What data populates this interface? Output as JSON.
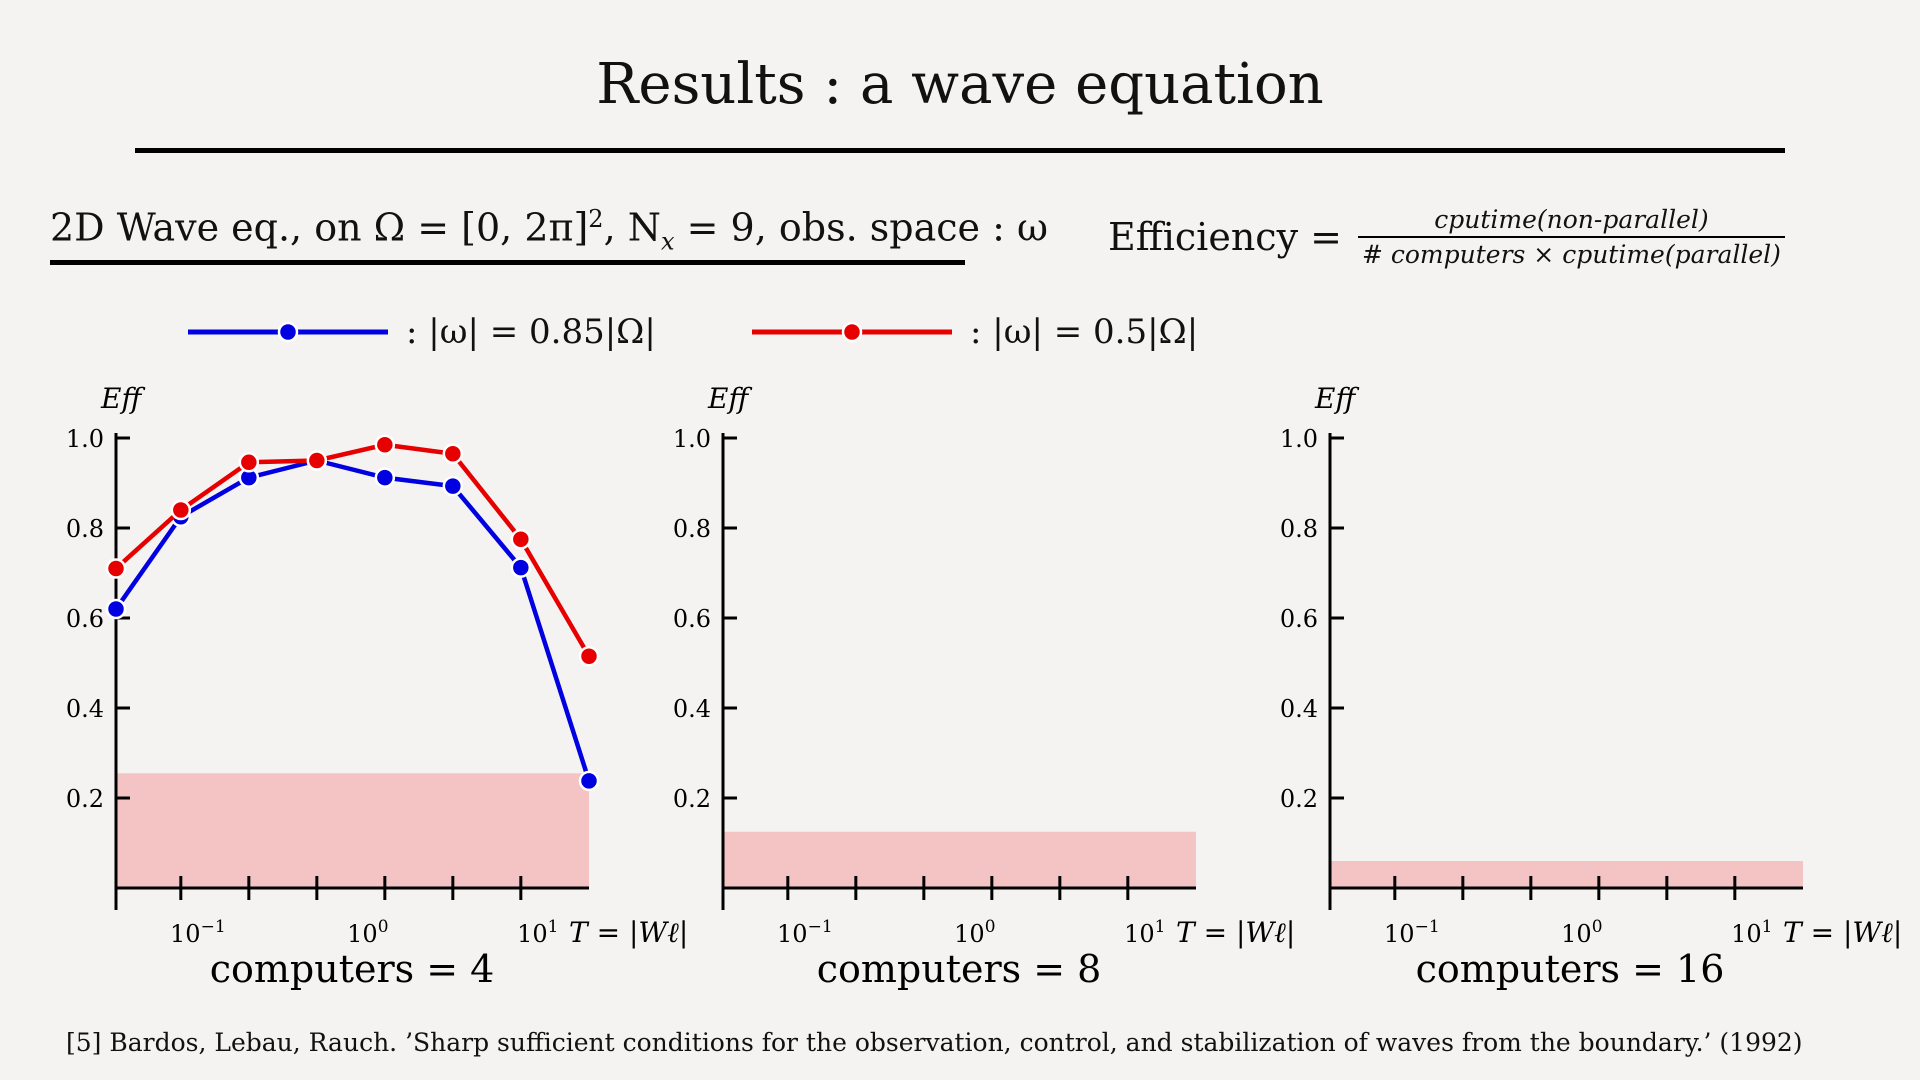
{
  "title": "Results : a wave equation",
  "subtitle": {
    "prefix": "2D Wave eq., on Ω = [0, 2π]",
    "sup": "2",
    "n_label": ", N",
    "n_sub": "x",
    "rest": " = 9, obs. space : ω"
  },
  "efficiency": {
    "label": "Efficiency =",
    "numerator": "cputime(non-parallel)",
    "denominator": "# computers × cputime(parallel)"
  },
  "legend": [
    {
      "name": "|ω| = 0.85|Ω|",
      "prefix": ":",
      "color": "#0000e0"
    },
    {
      "name": "|ω| = 0.5|Ω|",
      "prefix": ":",
      "color": "#e60000"
    }
  ],
  "footnote": "[5] Bardos, Lebau, Rauch. ’Sharp sufficient conditions for the observation, control, and stabilization of waves from the boundary.’ (1992)",
  "chart_data": [
    {
      "type": "line",
      "caption": "computers = 4",
      "ylabel": "Eff",
      "xlabel": "T = |Wℓ|",
      "x_scale": "log",
      "xlim": [
        0.033,
        20
      ],
      "ylim": [
        0,
        1.0
      ],
      "yticks": [
        "0.2",
        "0.4",
        "0.6",
        "0.8",
        "1.0"
      ],
      "ytick_values": [
        0.2,
        0.4,
        0.6,
        0.8,
        1.0
      ],
      "xticks": [
        {
          "base": "10",
          "exp": "−1"
        },
        {
          "base": "10",
          "exp": "0"
        },
        {
          "base": "10",
          "exp": "1"
        }
      ],
      "xtick_values": [
        0.1,
        1,
        10
      ],
      "minor_xticks": [
        0.0794,
        0.1995,
        0.5012,
        1.2589,
        3.1623,
        7.9433
      ],
      "shaded_level": 0.255,
      "shade_color": "#f4c4c4",
      "series": [
        {
          "name": "|ω| = 0.85|Ω|",
          "color": "#0000e0",
          "x": [
            0.033,
            0.0794,
            0.1995,
            0.5012,
            1.2589,
            3.1623,
            7.9433,
            20
          ],
          "y": [
            0.62,
            0.825,
            0.912,
            0.95,
            0.912,
            0.893,
            0.712,
            0.238
          ]
        },
        {
          "name": "|ω| = 0.5|Ω|",
          "color": "#e60000",
          "x": [
            0.033,
            0.0794,
            0.1995,
            0.5012,
            1.2589,
            3.1623,
            7.9433,
            20
          ],
          "y": [
            0.71,
            0.84,
            0.946,
            0.95,
            0.985,
            0.965,
            0.775,
            0.515
          ]
        }
      ]
    },
    {
      "type": "line",
      "caption": "computers = 8",
      "ylabel": "Eff",
      "xlabel": "T = |Wℓ|",
      "x_scale": "log",
      "xlim": [
        0.033,
        20
      ],
      "ylim": [
        0,
        1.0
      ],
      "yticks": [
        "0.2",
        "0.4",
        "0.6",
        "0.8",
        "1.0"
      ],
      "ytick_values": [
        0.2,
        0.4,
        0.6,
        0.8,
        1.0
      ],
      "xticks": [
        {
          "base": "10",
          "exp": "−1"
        },
        {
          "base": "10",
          "exp": "0"
        },
        {
          "base": "10",
          "exp": "1"
        }
      ],
      "xtick_values": [
        0.1,
        1,
        10
      ],
      "minor_xticks": [
        0.0794,
        0.1995,
        0.5012,
        1.2589,
        3.1623,
        7.9433
      ],
      "shaded_level": 0.125,
      "shade_color": "#f4c4c4",
      "series": []
    },
    {
      "type": "line",
      "caption": "computers = 16",
      "ylabel": "Eff",
      "xlabel": "T = |Wℓ|",
      "x_scale": "log",
      "xlim": [
        0.033,
        20
      ],
      "ylim": [
        0,
        1.0
      ],
      "yticks": [
        "0.2",
        "0.4",
        "0.6",
        "0.8",
        "1.0"
      ],
      "ytick_values": [
        0.2,
        0.4,
        0.6,
        0.8,
        1.0
      ],
      "xticks": [
        {
          "base": "10",
          "exp": "−1"
        },
        {
          "base": "10",
          "exp": "0"
        },
        {
          "base": "10",
          "exp": "1"
        }
      ],
      "xtick_values": [
        0.1,
        1,
        10
      ],
      "minor_xticks": [
        0.0794,
        0.1995,
        0.5012,
        1.2589,
        3.1623,
        7.9433
      ],
      "shaded_level": 0.06,
      "shade_color": "#f4c4c4",
      "series": []
    }
  ]
}
